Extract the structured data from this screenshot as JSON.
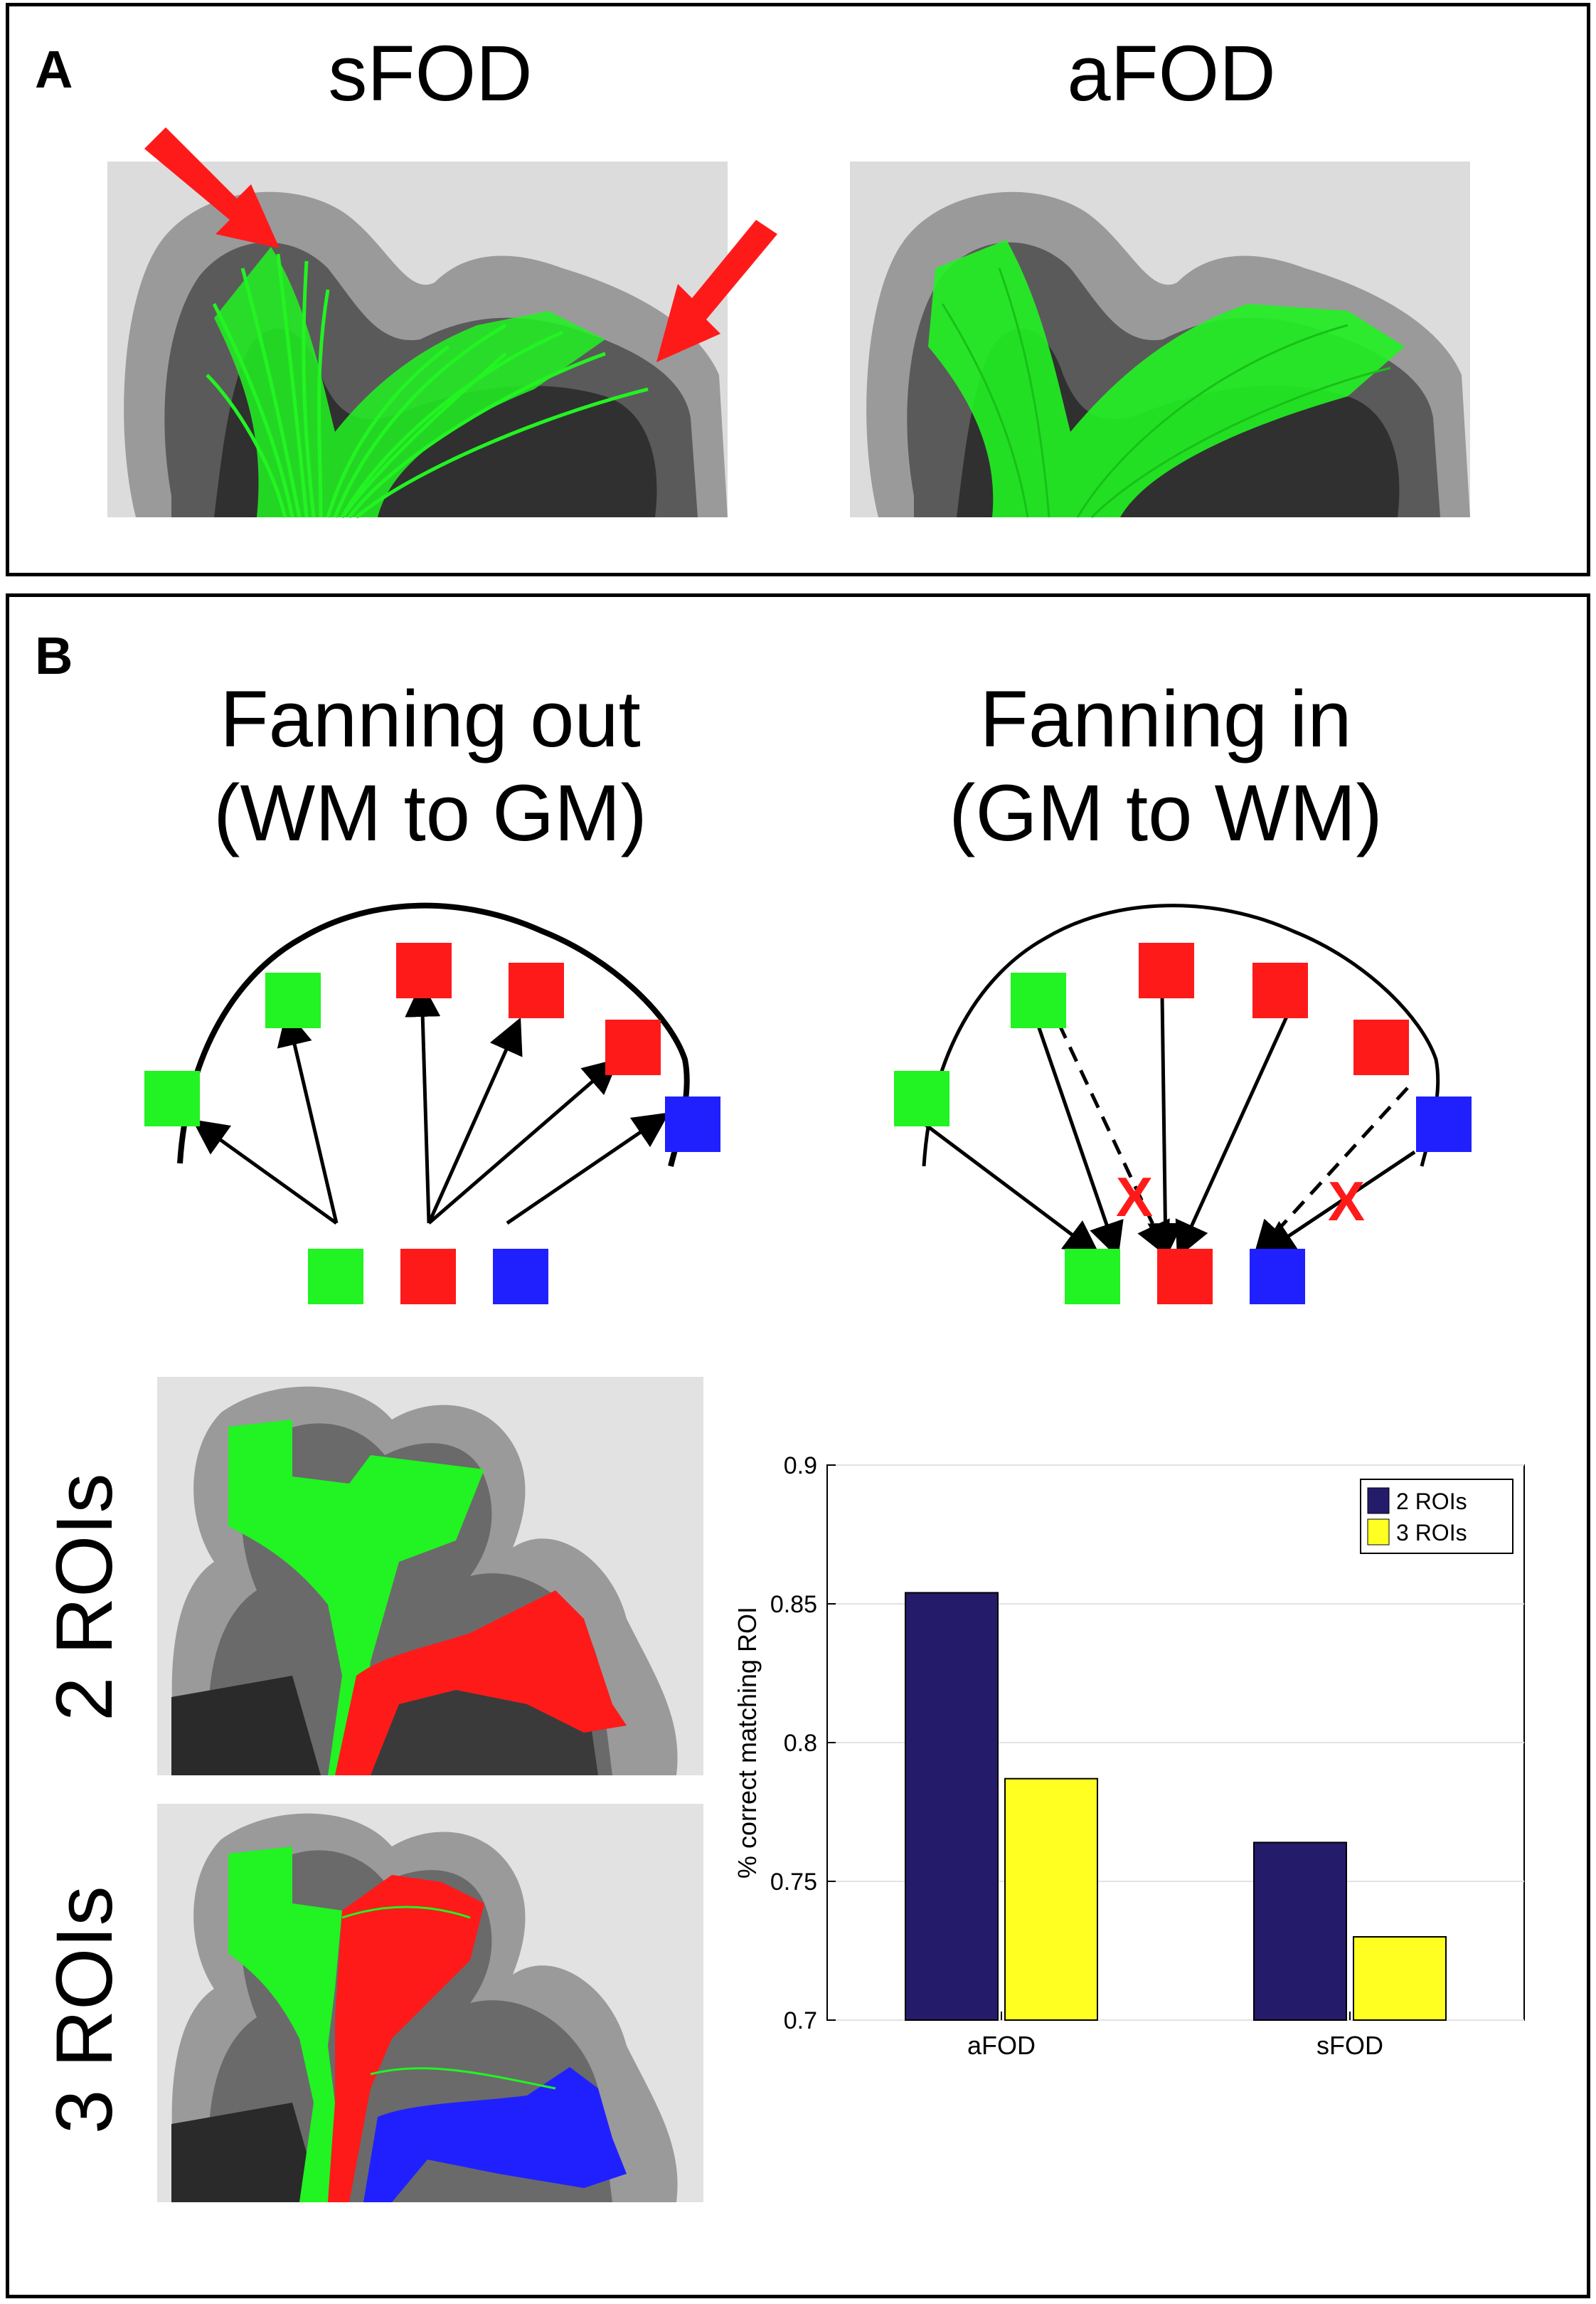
{
  "panel_a": {
    "label": "A",
    "left_title": "sFOD",
    "right_title": "aFOD"
  },
  "panel_b": {
    "label": "B",
    "left_title": "Fanning out\n(WM to GM)",
    "right_title": "Fanning in\n(GM to WM)",
    "row_labels": [
      "2 ROIs",
      "3 ROIs"
    ],
    "mismatch_mark": "X"
  },
  "colors": {
    "tract_green": "#22f322",
    "roi_red": "#ff1a1a",
    "roi_blue": "#2020ff",
    "arrow_red": "#ff1a1a",
    "bar_2roi": "#251b6b",
    "bar_3roi": "#ffff22"
  },
  "chart_data": {
    "type": "bar",
    "categories": [
      "aFOD",
      "sFOD"
    ],
    "series": [
      {
        "name": "2 ROIs",
        "values": [
          0.854,
          0.764
        ]
      },
      {
        "name": "3 ROIs",
        "values": [
          0.787,
          0.73
        ]
      }
    ],
    "ylabel": "% correct matching ROI",
    "xlabel": "",
    "ylim": [
      0.7,
      0.9
    ],
    "yticks": [
      "0.7",
      "0.75",
      "0.8",
      "0.85",
      "0.9"
    ],
    "grid": true,
    "legend": "top-right"
  }
}
